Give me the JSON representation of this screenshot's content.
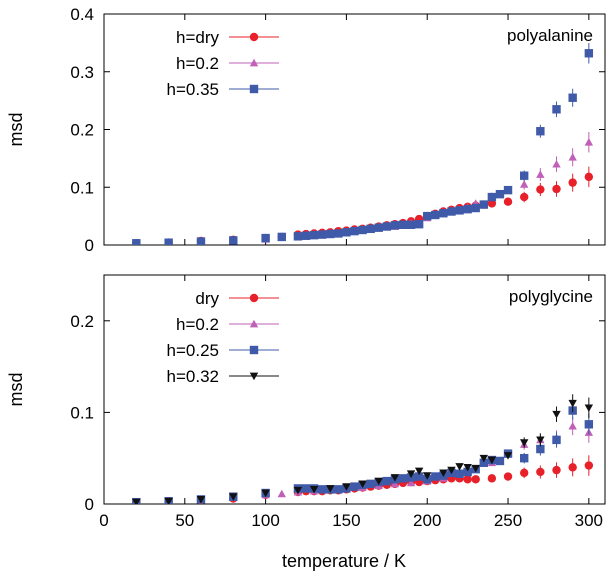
{
  "xlabel": "temperature / K",
  "chart_data": [
    {
      "type": "scatter",
      "title": "polyalanine",
      "ylabel": "msd",
      "xlabel": "temperature / K",
      "xlim": [
        0,
        310
      ],
      "ylim": [
        0,
        0.4
      ],
      "xticks": [
        0,
        50,
        100,
        150,
        200,
        250,
        300
      ],
      "yticks": [
        0,
        0.1,
        0.2,
        0.3,
        0.4
      ],
      "ytick_labels": [
        "0",
        "0.1",
        "0.2",
        "0.3",
        "0.4"
      ],
      "show_xtick_labels": false,
      "grid": false,
      "legend_position": "top-left",
      "series": [
        {
          "name": "h=dry",
          "color": "#e8202a",
          "marker": "circle",
          "points": [
            [
              20,
              0.003
            ],
            [
              40,
              0.004
            ],
            [
              60,
              0.007
            ],
            [
              80,
              0.009
            ],
            [
              100,
              0.012
            ],
            [
              110,
              0.014
            ],
            [
              120,
              0.018
            ],
            [
              125,
              0.019
            ],
            [
              130,
              0.02
            ],
            [
              135,
              0.021
            ],
            [
              140,
              0.022
            ],
            [
              145,
              0.024
            ],
            [
              150,
              0.025
            ],
            [
              155,
              0.027
            ],
            [
              160,
              0.028
            ],
            [
              165,
              0.03
            ],
            [
              170,
              0.032
            ],
            [
              175,
              0.034
            ],
            [
              180,
              0.036
            ],
            [
              185,
              0.038
            ],
            [
              190,
              0.041
            ],
            [
              195,
              0.045
            ],
            [
              200,
              0.05
            ],
            [
              205,
              0.054
            ],
            [
              210,
              0.058
            ],
            [
              215,
              0.061
            ],
            [
              220,
              0.064
            ],
            [
              225,
              0.066
            ],
            [
              230,
              0.068
            ],
            [
              235,
              0.07
            ],
            [
              240,
              0.072
            ],
            [
              250,
              0.075
            ],
            [
              260,
              0.083
            ],
            [
              270,
              0.096
            ],
            [
              280,
              0.097
            ],
            [
              290,
              0.108
            ],
            [
              300,
              0.118
            ]
          ]
        },
        {
          "name": "h=0.2",
          "color": "#c060b8",
          "marker": "triangle",
          "points": [
            [
              20,
              0.003
            ],
            [
              40,
              0.005
            ],
            [
              60,
              0.007
            ],
            [
              80,
              0.008
            ],
            [
              100,
              0.01
            ],
            [
              110,
              0.013
            ],
            [
              120,
              0.015
            ],
            [
              125,
              0.017
            ],
            [
              130,
              0.018
            ],
            [
              140,
              0.02
            ],
            [
              150,
              0.022
            ],
            [
              160,
              0.025
            ],
            [
              170,
              0.029
            ],
            [
              180,
              0.032
            ],
            [
              190,
              0.038
            ],
            [
              200,
              0.047
            ],
            [
              205,
              0.051
            ],
            [
              210,
              0.055
            ],
            [
              215,
              0.058
            ],
            [
              220,
              0.061
            ],
            [
              225,
              0.065
            ],
            [
              230,
              0.072
            ],
            [
              240,
              0.084
            ],
            [
              250,
              0.095
            ],
            [
              260,
              0.105
            ],
            [
              270,
              0.122
            ],
            [
              280,
              0.14
            ],
            [
              290,
              0.152
            ],
            [
              300,
              0.178
            ]
          ]
        },
        {
          "name": "h=0.35",
          "color": "#3f5aa8",
          "marker": "square",
          "points": [
            [
              20,
              0.003
            ],
            [
              40,
              0.004
            ],
            [
              60,
              0.006
            ],
            [
              80,
              0.008
            ],
            [
              100,
              0.012
            ],
            [
              110,
              0.014
            ],
            [
              120,
              0.015
            ],
            [
              125,
              0.016
            ],
            [
              130,
              0.017
            ],
            [
              135,
              0.018
            ],
            [
              140,
              0.019
            ],
            [
              145,
              0.02
            ],
            [
              150,
              0.022
            ],
            [
              155,
              0.024
            ],
            [
              160,
              0.026
            ],
            [
              165,
              0.028
            ],
            [
              170,
              0.03
            ],
            [
              175,
              0.032
            ],
            [
              180,
              0.034
            ],
            [
              185,
              0.035
            ],
            [
              190,
              0.035
            ],
            [
              195,
              0.036
            ],
            [
              200,
              0.05
            ],
            [
              205,
              0.052
            ],
            [
              210,
              0.055
            ],
            [
              215,
              0.058
            ],
            [
              220,
              0.06
            ],
            [
              225,
              0.062
            ],
            [
              230,
              0.064
            ],
            [
              235,
              0.07
            ],
            [
              240,
              0.083
            ],
            [
              245,
              0.088
            ],
            [
              250,
              0.095
            ],
            [
              260,
              0.12
            ],
            [
              270,
              0.197
            ],
            [
              280,
              0.235
            ],
            [
              290,
              0.255
            ],
            [
              300,
              0.332
            ]
          ]
        }
      ]
    },
    {
      "type": "scatter",
      "title": "polyglycine",
      "ylabel": "msd",
      "xlabel": "temperature / K",
      "xlim": [
        0,
        310
      ],
      "ylim": [
        0,
        0.25
      ],
      "xticks": [
        0,
        50,
        100,
        150,
        200,
        250,
        300
      ],
      "xtick_labels": [
        "0",
        "50",
        "100",
        "150",
        "200",
        "250",
        "300"
      ],
      "yticks": [
        0,
        0.1,
        0.2
      ],
      "ytick_labels": [
        "0",
        "0.1",
        "0.2"
      ],
      "show_xtick_labels": true,
      "grid": false,
      "legend_position": "top-left",
      "series": [
        {
          "name": "dry",
          "color": "#e8202a",
          "marker": "circle",
          "points": [
            [
              20,
              0.002
            ],
            [
              40,
              0.003
            ],
            [
              60,
              0.004
            ],
            [
              80,
              0.006
            ],
            [
              100,
              0.01
            ],
            [
              120,
              0.013
            ],
            [
              125,
              0.014
            ],
            [
              130,
              0.014
            ],
            [
              135,
              0.014
            ],
            [
              140,
              0.015
            ],
            [
              145,
              0.015
            ],
            [
              150,
              0.016
            ],
            [
              155,
              0.017
            ],
            [
              160,
              0.018
            ],
            [
              165,
              0.019
            ],
            [
              170,
              0.02
            ],
            [
              175,
              0.021
            ],
            [
              180,
              0.022
            ],
            [
              185,
              0.023
            ],
            [
              190,
              0.024
            ],
            [
              195,
              0.024
            ],
            [
              200,
              0.025
            ],
            [
              205,
              0.026
            ],
            [
              210,
              0.027
            ],
            [
              215,
              0.028
            ],
            [
              220,
              0.028
            ],
            [
              225,
              0.027
            ],
            [
              230,
              0.027
            ],
            [
              240,
              0.028
            ],
            [
              250,
              0.03
            ],
            [
              260,
              0.034
            ],
            [
              270,
              0.035
            ],
            [
              280,
              0.037
            ],
            [
              290,
              0.04
            ],
            [
              300,
              0.042
            ]
          ]
        },
        {
          "name": "h=0.2",
          "color": "#c060b8",
          "marker": "triangle",
          "points": [
            [
              20,
              0.002
            ],
            [
              40,
              0.003
            ],
            [
              60,
              0.005
            ],
            [
              80,
              0.007
            ],
            [
              100,
              0.01
            ],
            [
              110,
              0.011
            ],
            [
              120,
              0.013
            ],
            [
              130,
              0.014
            ],
            [
              140,
              0.015
            ],
            [
              150,
              0.017
            ],
            [
              160,
              0.018
            ],
            [
              170,
              0.02
            ],
            [
              180,
              0.022
            ],
            [
              190,
              0.023
            ],
            [
              200,
              0.025
            ],
            [
              210,
              0.028
            ],
            [
              220,
              0.032
            ],
            [
              230,
              0.038
            ],
            [
              240,
              0.045
            ],
            [
              250,
              0.055
            ],
            [
              260,
              0.065
            ],
            [
              270,
              0.07
            ],
            [
              280,
              0.072
            ],
            [
              290,
              0.085
            ],
            [
              300,
              0.078
            ]
          ]
        },
        {
          "name": "h=0.25",
          "color": "#3f5aa8",
          "marker": "square",
          "points": [
            [
              20,
              0.002
            ],
            [
              40,
              0.003
            ],
            [
              60,
              0.005
            ],
            [
              80,
              0.008
            ],
            [
              100,
              0.012
            ],
            [
              120,
              0.017
            ],
            [
              125,
              0.017
            ],
            [
              130,
              0.017
            ],
            [
              135,
              0.016
            ],
            [
              140,
              0.016
            ],
            [
              145,
              0.016
            ],
            [
              150,
              0.017
            ],
            [
              155,
              0.019
            ],
            [
              160,
              0.021
            ],
            [
              165,
              0.022
            ],
            [
              170,
              0.024
            ],
            [
              175,
              0.025
            ],
            [
              180,
              0.027
            ],
            [
              185,
              0.028
            ],
            [
              190,
              0.029
            ],
            [
              195,
              0.03
            ],
            [
              200,
              0.027
            ],
            [
              205,
              0.03
            ],
            [
              210,
              0.031
            ],
            [
              215,
              0.034
            ],
            [
              220,
              0.033
            ],
            [
              225,
              0.035
            ],
            [
              230,
              0.038
            ],
            [
              235,
              0.045
            ],
            [
              240,
              0.048
            ],
            [
              245,
              0.047
            ],
            [
              250,
              0.055
            ],
            [
              260,
              0.05
            ],
            [
              270,
              0.06
            ],
            [
              280,
              0.07
            ],
            [
              290,
              0.102
            ],
            [
              300,
              0.087
            ]
          ]
        },
        {
          "name": "h=0.32",
          "color": "#111111",
          "marker": "triangle-down",
          "points": [
            [
              20,
              0.002
            ],
            [
              40,
              0.003
            ],
            [
              60,
              0.005
            ],
            [
              80,
              0.008
            ],
            [
              100,
              0.012
            ],
            [
              120,
              0.015
            ],
            [
              130,
              0.016
            ],
            [
              140,
              0.017
            ],
            [
              150,
              0.019
            ],
            [
              160,
              0.022
            ],
            [
              170,
              0.025
            ],
            [
              180,
              0.029
            ],
            [
              190,
              0.033
            ],
            [
              195,
              0.036
            ],
            [
              200,
              0.031
            ],
            [
              210,
              0.034
            ],
            [
              215,
              0.037
            ],
            [
              220,
              0.041
            ],
            [
              225,
              0.04
            ],
            [
              230,
              0.039
            ],
            [
              235,
              0.05
            ],
            [
              240,
              0.048
            ],
            [
              250,
              0.053
            ],
            [
              260,
              0.067
            ],
            [
              270,
              0.07
            ],
            [
              280,
              0.098
            ],
            [
              290,
              0.11
            ],
            [
              300,
              0.105
            ]
          ]
        }
      ]
    }
  ]
}
